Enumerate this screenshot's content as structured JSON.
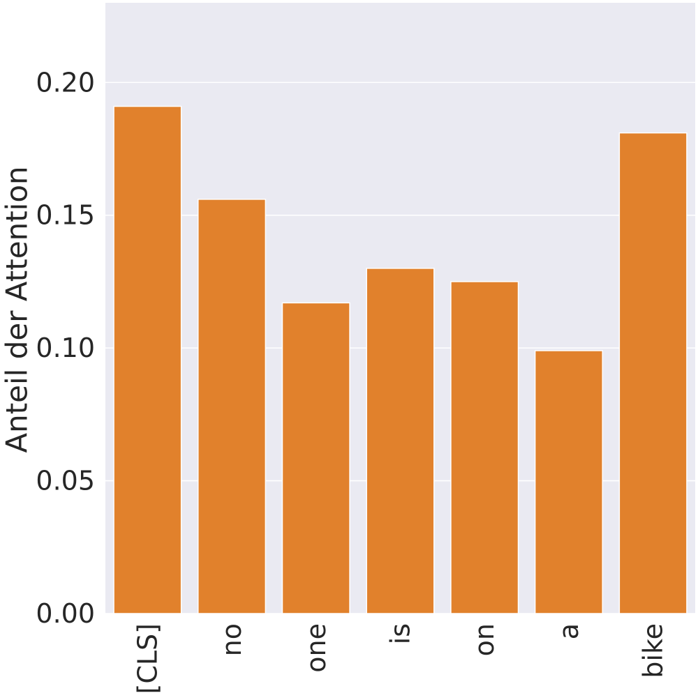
{
  "chart_data": {
    "type": "bar",
    "title": "",
    "xlabel": "",
    "ylabel": "Anteil der Attention",
    "categories": [
      "[CLS]",
      "no",
      "one",
      "is",
      "on",
      "a",
      "bike"
    ],
    "values": [
      0.191,
      0.156,
      0.117,
      0.13,
      0.125,
      0.099,
      0.181
    ],
    "ylim": [
      0,
      0.23
    ],
    "yticks": [
      0.0,
      0.05,
      0.1,
      0.15,
      0.2
    ],
    "ytick_labels": [
      "0.00",
      "0.05",
      "0.10",
      "0.15",
      "0.20"
    ],
    "grid": true,
    "legend": "none",
    "colors": {
      "bar": "#e1812c",
      "plot_background": "#eaeaf2",
      "grid": "#ffffff",
      "text": "#262626"
    }
  }
}
